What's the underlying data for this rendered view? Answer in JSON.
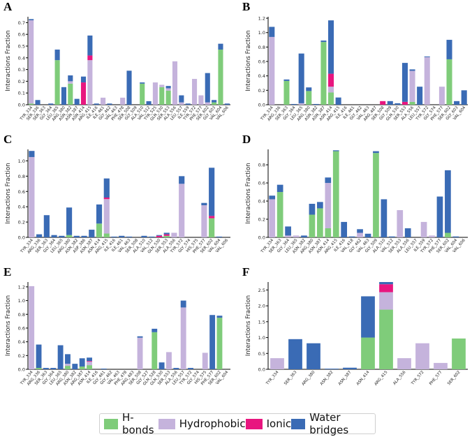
{
  "colors": {
    "hbond": "#7fcc7a",
    "hydrophobic": "#c5b3dc",
    "ionic": "#e8167f",
    "water": "#3a6bb5"
  },
  "legend": {
    "hbond": "H-bonds",
    "hydrophobic": "Hydrophobic",
    "ionic": "Ionic",
    "water": "Water bridges"
  },
  "chart_data": [
    {
      "label": "A",
      "type": "bar",
      "stacked": true,
      "ylabel": "Interactions Fraction",
      "ylim": [
        0,
        0.75
      ],
      "yticks": [
        "0.0",
        "0.1",
        "0.2",
        "0.3",
        "0.4",
        "0.5",
        "0.6",
        "0.7"
      ],
      "categories": [
        "TYR_334",
        "SER_336",
        "SER_363",
        "GLY_364",
        "LEU_365",
        "ARG_380",
        "ASN_382",
        "ASN_387",
        "ASN_414",
        "ARG_415",
        "ILE_416",
        "ILE_461",
        "GLY_462",
        "VAL_463",
        "PHE_478",
        "SER_508",
        "GLY_509",
        "ALA_510",
        "VAL_512",
        "TYR_525",
        "GLN_530",
        "SER_553",
        "ALA_556",
        "LEU_557",
        "ILE_559",
        "TYR_572",
        "PHE_577",
        "SER_602",
        "GLY_603",
        "VAL_604",
        "VAL_606"
      ],
      "series": [
        {
          "name": "H-bonds",
          "values": [
            0.01,
            0,
            0,
            0,
            0.38,
            0,
            0.18,
            0,
            0,
            0,
            0,
            0,
            0,
            0,
            0,
            0,
            0,
            0.18,
            0,
            0,
            0.15,
            0.12,
            0,
            0,
            0,
            0,
            0,
            0,
            0.02,
            0.47,
            0
          ]
        },
        {
          "name": "Hydrophobic",
          "values": [
            0.71,
            0,
            0,
            0,
            0,
            0,
            0.02,
            0,
            0,
            0.38,
            0,
            0.06,
            0,
            0,
            0.06,
            0,
            0,
            0,
            0,
            0.19,
            0.02,
            0.02,
            0.37,
            0.02,
            0,
            0.22,
            0.08,
            0.02,
            0,
            0,
            0
          ]
        },
        {
          "name": "Ionic",
          "values": [
            0,
            0,
            0,
            0,
            0,
            0,
            0,
            0,
            0.19,
            0.04,
            0,
            0,
            0,
            0,
            0,
            0,
            0,
            0,
            0,
            0,
            0,
            0,
            0,
            0,
            0,
            0,
            0,
            0,
            0,
            0,
            0
          ]
        },
        {
          "name": "Water bridges",
          "values": [
            0.01,
            0.04,
            0,
            0.01,
            0.09,
            0.15,
            0.05,
            0.05,
            0.05,
            0.17,
            0.01,
            0,
            0.01,
            0,
            0,
            0.29,
            0,
            0.01,
            0.03,
            0,
            0,
            0.02,
            0,
            0.06,
            0.01,
            0,
            0,
            0.25,
            0.02,
            0.05,
            0.01
          ]
        }
      ]
    },
    {
      "label": "B",
      "type": "bar",
      "stacked": true,
      "ylabel": "Interactions Fraction",
      "ylim": [
        0,
        1.22
      ],
      "yticks": [
        "0.0",
        "0.2",
        "0.4",
        "0.6",
        "0.8",
        "1.0",
        "1.2"
      ],
      "categories": [
        "TYR_334",
        "ARG_336",
        "SER_363",
        "GLY_364",
        "LEU_365",
        "ARG_380",
        "ASN_382",
        "ASN_387",
        "ASN_414",
        "ARG_415",
        "ILE_416",
        "ILE_461",
        "GLY_462",
        "VAL_463",
        "ARG_487",
        "SER_508",
        "GLY_509",
        "GLN_530",
        "SER_553",
        "ALA_556",
        "LEU_557",
        "TYR_572",
        "GLY_574",
        "PHE_577",
        "SER_602",
        "GLY_603",
        "VAL_604"
      ],
      "series": [
        {
          "name": "H-bonds",
          "values": [
            0,
            0,
            0.33,
            0,
            0,
            0.19,
            0,
            0.87,
            0.17,
            0,
            0,
            0,
            0,
            0,
            0,
            0,
            0,
            0,
            0,
            0.04,
            0,
            0,
            0,
            0,
            0.63,
            0,
            0
          ]
        },
        {
          "name": "Hydrophobic",
          "values": [
            0.94,
            0,
            0,
            0,
            0.02,
            0,
            0,
            0,
            0.08,
            0,
            0,
            0,
            0,
            0,
            0,
            0,
            0,
            0,
            0,
            0.43,
            0,
            0.66,
            0,
            0.25,
            0,
            0,
            0
          ]
        },
        {
          "name": "Ionic",
          "values": [
            0,
            0,
            0,
            0,
            0,
            0,
            0,
            0,
            0.18,
            0,
            0,
            0,
            0,
            0,
            0,
            0.05,
            0,
            0,
            0.04,
            0,
            0,
            0,
            0,
            0,
            0,
            0,
            0
          ]
        },
        {
          "name": "Water bridges",
          "values": [
            0.14,
            0,
            0.02,
            0.01,
            0.69,
            0.05,
            0.01,
            0.02,
            0.74,
            0.1,
            0,
            0,
            0,
            0,
            0,
            0,
            0.05,
            0.02,
            0.54,
            0.02,
            0.25,
            0.01,
            0,
            0,
            0.27,
            0.05,
            0.2
          ]
        }
      ]
    },
    {
      "label": "C",
      "type": "bar",
      "stacked": true,
      "ylabel": "Interactions Fraction",
      "ylim": [
        0,
        1.15
      ],
      "yticks": [
        "0.0",
        "0.2",
        "0.4",
        "0.6",
        "0.8",
        "1.0"
      ],
      "categories": [
        "TYR_334",
        "ARG_336",
        "SER_363",
        "GLY_364",
        "LEU_365",
        "ARG_380",
        "ASN_382",
        "ASP_386",
        "ASN_387",
        "ASN_414",
        "ARG_415",
        "ILE_416",
        "ILE_461",
        "VAL_463",
        "SER_508",
        "ALA_510",
        "VAL_512",
        "GLN_530",
        "SER_553",
        "ALA_556",
        "TYR_572",
        "GLY_574",
        "HIS_575",
        "PHE_577",
        "SER_602",
        "VAL_604",
        "VAL_606"
      ],
      "series": [
        {
          "name": "H-bonds",
          "values": [
            0,
            0,
            0,
            0,
            0,
            0.03,
            0,
            0,
            0,
            0.18,
            0.05,
            0,
            0,
            0,
            0,
            0,
            0,
            0,
            0.02,
            0,
            0,
            0,
            0,
            0,
            0.25,
            0,
            0
          ]
        },
        {
          "name": "Hydrophobic",
          "values": [
            1.05,
            0,
            0,
            0,
            0,
            0,
            0,
            0,
            0,
            0,
            0.45,
            0,
            0,
            0,
            0,
            0,
            0,
            0,
            0,
            0.06,
            0.7,
            0,
            0,
            0.42,
            0,
            0,
            0
          ]
        },
        {
          "name": "Ionic",
          "values": [
            0,
            0,
            0,
            0,
            0,
            0,
            0,
            0,
            0,
            0,
            0.02,
            0,
            0,
            0,
            0,
            0,
            0,
            0.02,
            0.02,
            0,
            0,
            0,
            0,
            0,
            0.03,
            0,
            0
          ]
        },
        {
          "name": "Water bridges",
          "values": [
            0.08,
            0.04,
            0.29,
            0.03,
            0.02,
            0.36,
            0.02,
            0.02,
            0.1,
            0.25,
            0.25,
            0.01,
            0.02,
            0.01,
            0,
            0.02,
            0.01,
            0.01,
            0.02,
            0,
            0.1,
            0,
            0,
            0.03,
            0.63,
            0.01,
            0
          ]
        }
      ]
    },
    {
      "label": "D",
      "type": "bar",
      "stacked": true,
      "ylabel": "Interactions Fraction",
      "ylim": [
        0,
        0.97
      ],
      "yticks": [
        "0.0",
        "0.2",
        "0.4",
        "0.6",
        "0.8"
      ],
      "categories": [
        "TYR_334",
        "SER_363",
        "GLY_364",
        "LEU_365",
        "ASN_382",
        "ARG_380",
        "ASN_387",
        "ASN_414",
        "ARG_415",
        "ILE_416",
        "VAL_418",
        "GLY_462",
        "VAL_463",
        "GLY_509",
        "ALA_510",
        "VAL_512",
        "SER_553",
        "ALA_556",
        "LEU_557",
        "ILE_559",
        "TYR_572",
        "PHE_577",
        "SER_602",
        "VAL_604",
        "VAL_606"
      ],
      "series": [
        {
          "name": "H-bonds",
          "values": [
            0,
            0.5,
            0,
            0,
            0,
            0.25,
            0.32,
            0.1,
            0.95,
            0,
            0,
            0,
            0,
            0.93,
            0,
            0,
            0,
            0,
            0,
            0,
            0,
            0,
            0.05,
            0,
            0
          ]
        },
        {
          "name": "Hydrophobic",
          "values": [
            0.42,
            0,
            0.02,
            0.02,
            0,
            0,
            0,
            0.5,
            0,
            0,
            0,
            0.05,
            0,
            0,
            0,
            0,
            0.3,
            0,
            0,
            0.17,
            0.02,
            0,
            0,
            0,
            0
          ]
        },
        {
          "name": "Ionic",
          "values": [
            0,
            0,
            0,
            0,
            0,
            0,
            0,
            0,
            0,
            0,
            0,
            0,
            0,
            0,
            0,
            0,
            0,
            0,
            0,
            0,
            0,
            0,
            0,
            0,
            0
          ]
        },
        {
          "name": "Water bridges",
          "values": [
            0.04,
            0.08,
            0.1,
            0,
            0.02,
            0.12,
            0.07,
            0.06,
            0.01,
            0.17,
            0.01,
            0.04,
            0.04,
            0.02,
            0.42,
            0.01,
            0,
            0.1,
            0,
            0,
            0,
            0.45,
            0.69,
            0.01,
            0
          ]
        }
      ]
    },
    {
      "label": "E",
      "type": "bar",
      "stacked": true,
      "ylabel": "Interactions Fraction",
      "ylim": [
        0,
        1.27
      ],
      "yticks": [
        "0.0",
        "0.2",
        "0.4",
        "0.6",
        "0.8",
        "1.0",
        "1.2"
      ],
      "categories": [
        "TYR_334",
        "ARG_336",
        "SER_363",
        "GLY_364",
        "LEU_365",
        "ARG_380",
        "ASN_382",
        "ARG_387",
        "ASN_414",
        "ILE_416",
        "GLY_461",
        "GLY_462",
        "VAL_463",
        "PHE_478",
        "ARG_483",
        "SER_508",
        "GLY_527",
        "GLN_528",
        "GLN_530",
        "SER_553",
        "ALA_556",
        "LEU_557",
        "TYR_572",
        "GLY_574",
        "HIS_575",
        "PHE_577",
        "SER_602",
        "VAL_604"
      ],
      "series": [
        {
          "name": "H-bonds",
          "values": [
            0,
            0.02,
            0,
            0,
            0,
            0.05,
            0,
            0.04,
            0.06,
            0,
            0,
            0,
            0,
            0,
            0,
            0,
            0,
            0.54,
            0,
            0,
            0,
            0,
            0,
            0,
            0,
            0,
            0.75,
            0
          ]
        },
        {
          "name": "Hydrophobic",
          "values": [
            1.21,
            0,
            0,
            0,
            0,
            0.03,
            0,
            0,
            0.05,
            0,
            0,
            0,
            0,
            0,
            0,
            0.46,
            0,
            0,
            0,
            0.25,
            0,
            0.9,
            0,
            0,
            0.24,
            0,
            0,
            0
          ]
        },
        {
          "name": "Ionic",
          "values": [
            0,
            0,
            0,
            0,
            0,
            0,
            0,
            0,
            0.01,
            0,
            0,
            0,
            0,
            0,
            0,
            0,
            0,
            0,
            0,
            0,
            0,
            0,
            0,
            0,
            0,
            0,
            0,
            0
          ]
        },
        {
          "name": "Water bridges",
          "values": [
            0,
            0.34,
            0.02,
            0.02,
            0.35,
            0.14,
            0.08,
            0.12,
            0.05,
            0,
            0.01,
            0,
            0,
            0,
            0,
            0.02,
            0,
            0.05,
            0.1,
            0,
            0.02,
            0.1,
            0.02,
            0,
            0,
            0.79,
            0.03,
            0
          ]
        }
      ]
    },
    {
      "label": "F",
      "type": "bar",
      "stacked": true,
      "ylabel": "Interactions Fraction",
      "ylim": [
        0,
        2.75
      ],
      "yticks": [
        "0.0",
        "0.5",
        "1.0",
        "1.5",
        "2.0",
        "2.5"
      ],
      "categories": [
        "TYR_334",
        "SER_363",
        "ARG_380",
        "ASN_382",
        "ASN_387",
        "ASN_414",
        "ARG_415",
        "ALA_556",
        "TYR_572",
        "PHE_577",
        "SER_602"
      ],
      "series": [
        {
          "name": "H-bonds",
          "values": [
            0,
            0,
            0,
            0,
            0,
            1.0,
            1.88,
            0,
            0,
            0,
            0.97
          ]
        },
        {
          "name": "Hydrophobic",
          "values": [
            0.35,
            0,
            0,
            0,
            0,
            0,
            0.55,
            0.35,
            0.82,
            0.2,
            0
          ]
        },
        {
          "name": "Ionic",
          "values": [
            0,
            0,
            0,
            0,
            0,
            0,
            0.25,
            0,
            0,
            0,
            0
          ]
        },
        {
          "name": "Water bridges",
          "values": [
            0,
            0.95,
            0.82,
            0.02,
            0.05,
            1.3,
            0.07,
            0,
            0,
            0,
            0
          ]
        }
      ]
    }
  ]
}
